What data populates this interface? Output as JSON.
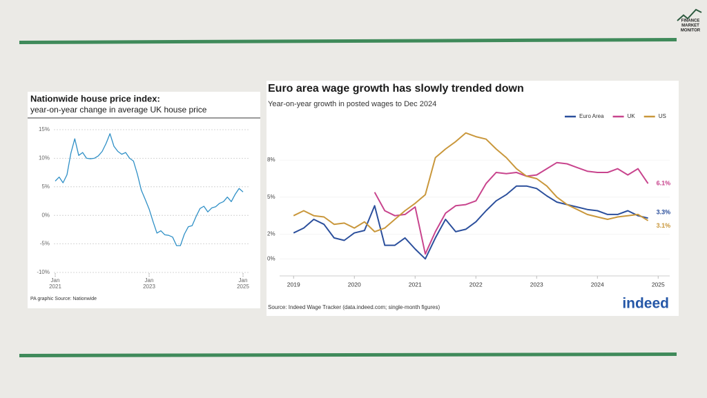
{
  "logo": {
    "lines": [
      "FINANCE",
      "MARKET",
      "MONITOR"
    ]
  },
  "chart_data": [
    {
      "type": "line",
      "title": "Nationwide house price index:",
      "subtitle": "year-on-year change in average UK house price",
      "source": "PA graphic Source: Nationwide",
      "color": "#2e8fc6",
      "grid": true,
      "categories": [
        "Jan 2021",
        null,
        null,
        null,
        null,
        null,
        null,
        null,
        null,
        null,
        null,
        null,
        null,
        null,
        null,
        null,
        null,
        null,
        null,
        null,
        null,
        null,
        null,
        null,
        "Jan 2023",
        null,
        null,
        null,
        null,
        null,
        null,
        null,
        null,
        null,
        null,
        null,
        null,
        null,
        null,
        null,
        null,
        null,
        null,
        null,
        null,
        null,
        null,
        null,
        "Jan 2025"
      ],
      "values": [
        6.0,
        6.7,
        5.7,
        7.1,
        10.9,
        13.4,
        10.5,
        11.0,
        10.0,
        9.9,
        10.0,
        10.4,
        11.2,
        12.6,
        14.3,
        12.1,
        11.2,
        10.7,
        11.0,
        10.0,
        9.5,
        7.2,
        4.4,
        2.8,
        1.1,
        -1.1,
        -3.1,
        -2.7,
        -3.4,
        -3.5,
        -3.8,
        -5.3,
        -5.3,
        -3.3,
        -2.0,
        -1.8,
        -0.2,
        1.2,
        1.6,
        0.6,
        1.3,
        1.5,
        2.1,
        2.4,
        3.2,
        2.4,
        3.7,
        4.7,
        4.1
      ],
      "ylim": [
        -10,
        15
      ],
      "yticks": [
        {
          "value": 15,
          "label": "15%"
        },
        {
          "value": 10,
          "label": "10%"
        },
        {
          "value": 5,
          "label": "5%"
        },
        {
          "value": 0,
          "label": "0%"
        },
        {
          "value": -5,
          "label": "-5%"
        },
        {
          "value": -10,
          "label": "-10%"
        }
      ]
    },
    {
      "type": "line",
      "title": "Euro area wage growth has slowly trended down",
      "subtitle": "Year-on-year growth in posted wages to Dec 2024",
      "source": "Source: Indeed Wage Tracker (data.indeed.com; single-month figures)",
      "logo": "indeed",
      "legend": "top-right",
      "grid": true,
      "x": [
        2019,
        2019.167,
        2019.333,
        2019.5,
        2019.667,
        2019.833,
        2020,
        2020.167,
        2020.333,
        2020.5,
        2020.667,
        2020.833,
        2021,
        2021.167,
        2021.333,
        2021.5,
        2021.667,
        2021.833,
        2022,
        2022.167,
        2022.333,
        2022.5,
        2022.667,
        2022.833,
        2023,
        2023.167,
        2023.333,
        2023.5,
        2023.667,
        2023.833,
        2024,
        2024.167,
        2024.333,
        2024.5,
        2024.667,
        2024.833
      ],
      "xlim": [
        2018.77,
        2025.19
      ],
      "xticks": [
        2019,
        2020,
        2021,
        2022,
        2023,
        2024,
        2025
      ],
      "ylim": [
        -1.1,
        10.8
      ],
      "yticks": [
        {
          "value": 0,
          "label": "0%"
        },
        {
          "value": 2,
          "label": "2%"
        },
        {
          "value": 5,
          "label": "5%"
        },
        {
          "value": 8,
          "label": "8%"
        }
      ],
      "series": [
        {
          "name": "Euro Area",
          "color": "#2b4f9c",
          "end_label": "3.3%",
          "values": [
            2.1,
            2.5,
            3.2,
            2.8,
            1.7,
            1.5,
            2.1,
            2.3,
            4.3,
            1.1,
            1.1,
            1.7,
            0.8,
            0.0,
            1.7,
            3.2,
            2.2,
            2.4,
            3.0,
            3.9,
            4.7,
            5.2,
            5.9,
            5.9,
            5.7,
            5.1,
            4.6,
            4.4,
            4.2,
            4.0,
            3.9,
            3.6,
            3.6,
            3.9,
            3.5,
            3.3
          ]
        },
        {
          "name": "UK",
          "color": "#c8448d",
          "end_label": "6.1%",
          "values": [
            null,
            null,
            null,
            null,
            null,
            null,
            null,
            null,
            5.4,
            3.9,
            3.5,
            3.6,
            4.2,
            0.4,
            2.2,
            3.7,
            4.3,
            4.4,
            4.7,
            6.1,
            7.0,
            6.9,
            7.0,
            6.7,
            6.8,
            7.3,
            7.8,
            7.7,
            7.4,
            7.1,
            7.0,
            7.0,
            7.3,
            6.8,
            7.3,
            6.1
          ]
        },
        {
          "name": "US",
          "color": "#c9973b",
          "end_label": "3.1%",
          "values": [
            3.5,
            3.9,
            3.5,
            3.4,
            2.8,
            2.9,
            2.5,
            3.0,
            2.2,
            2.5,
            3.2,
            3.9,
            4.5,
            5.2,
            8.2,
            8.9,
            9.5,
            10.2,
            9.9,
            9.7,
            8.9,
            8.2,
            7.3,
            6.7,
            6.5,
            5.9,
            5.0,
            4.4,
            4.0,
            3.6,
            3.4,
            3.2,
            3.4,
            3.5,
            3.6,
            3.1
          ]
        }
      ]
    }
  ]
}
